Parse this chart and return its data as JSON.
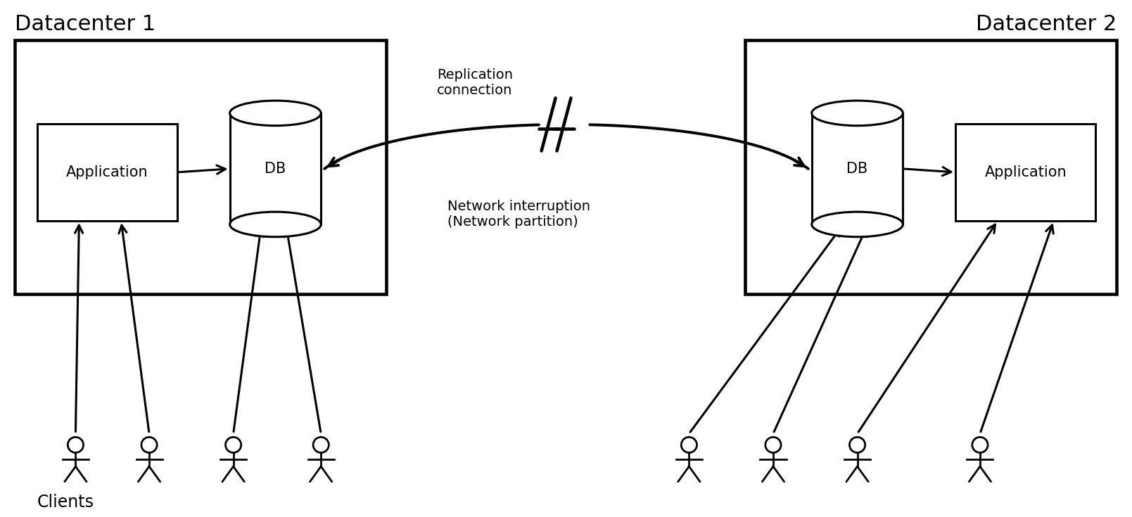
{
  "bg_color": "#ffffff",
  "line_color": "#000000",
  "dc1_label": "Datacenter 1",
  "dc2_label": "Datacenter 2",
  "clients_label": "Clients",
  "replication_label": "Replication\nconnection",
  "network_label": "Network interruption\n(Network partition)",
  "app1_label": "Application",
  "app2_label": "Application",
  "db1_label": "DB",
  "db2_label": "DB",
  "figsize": [
    16.09,
    7.35
  ],
  "dpi": 100
}
